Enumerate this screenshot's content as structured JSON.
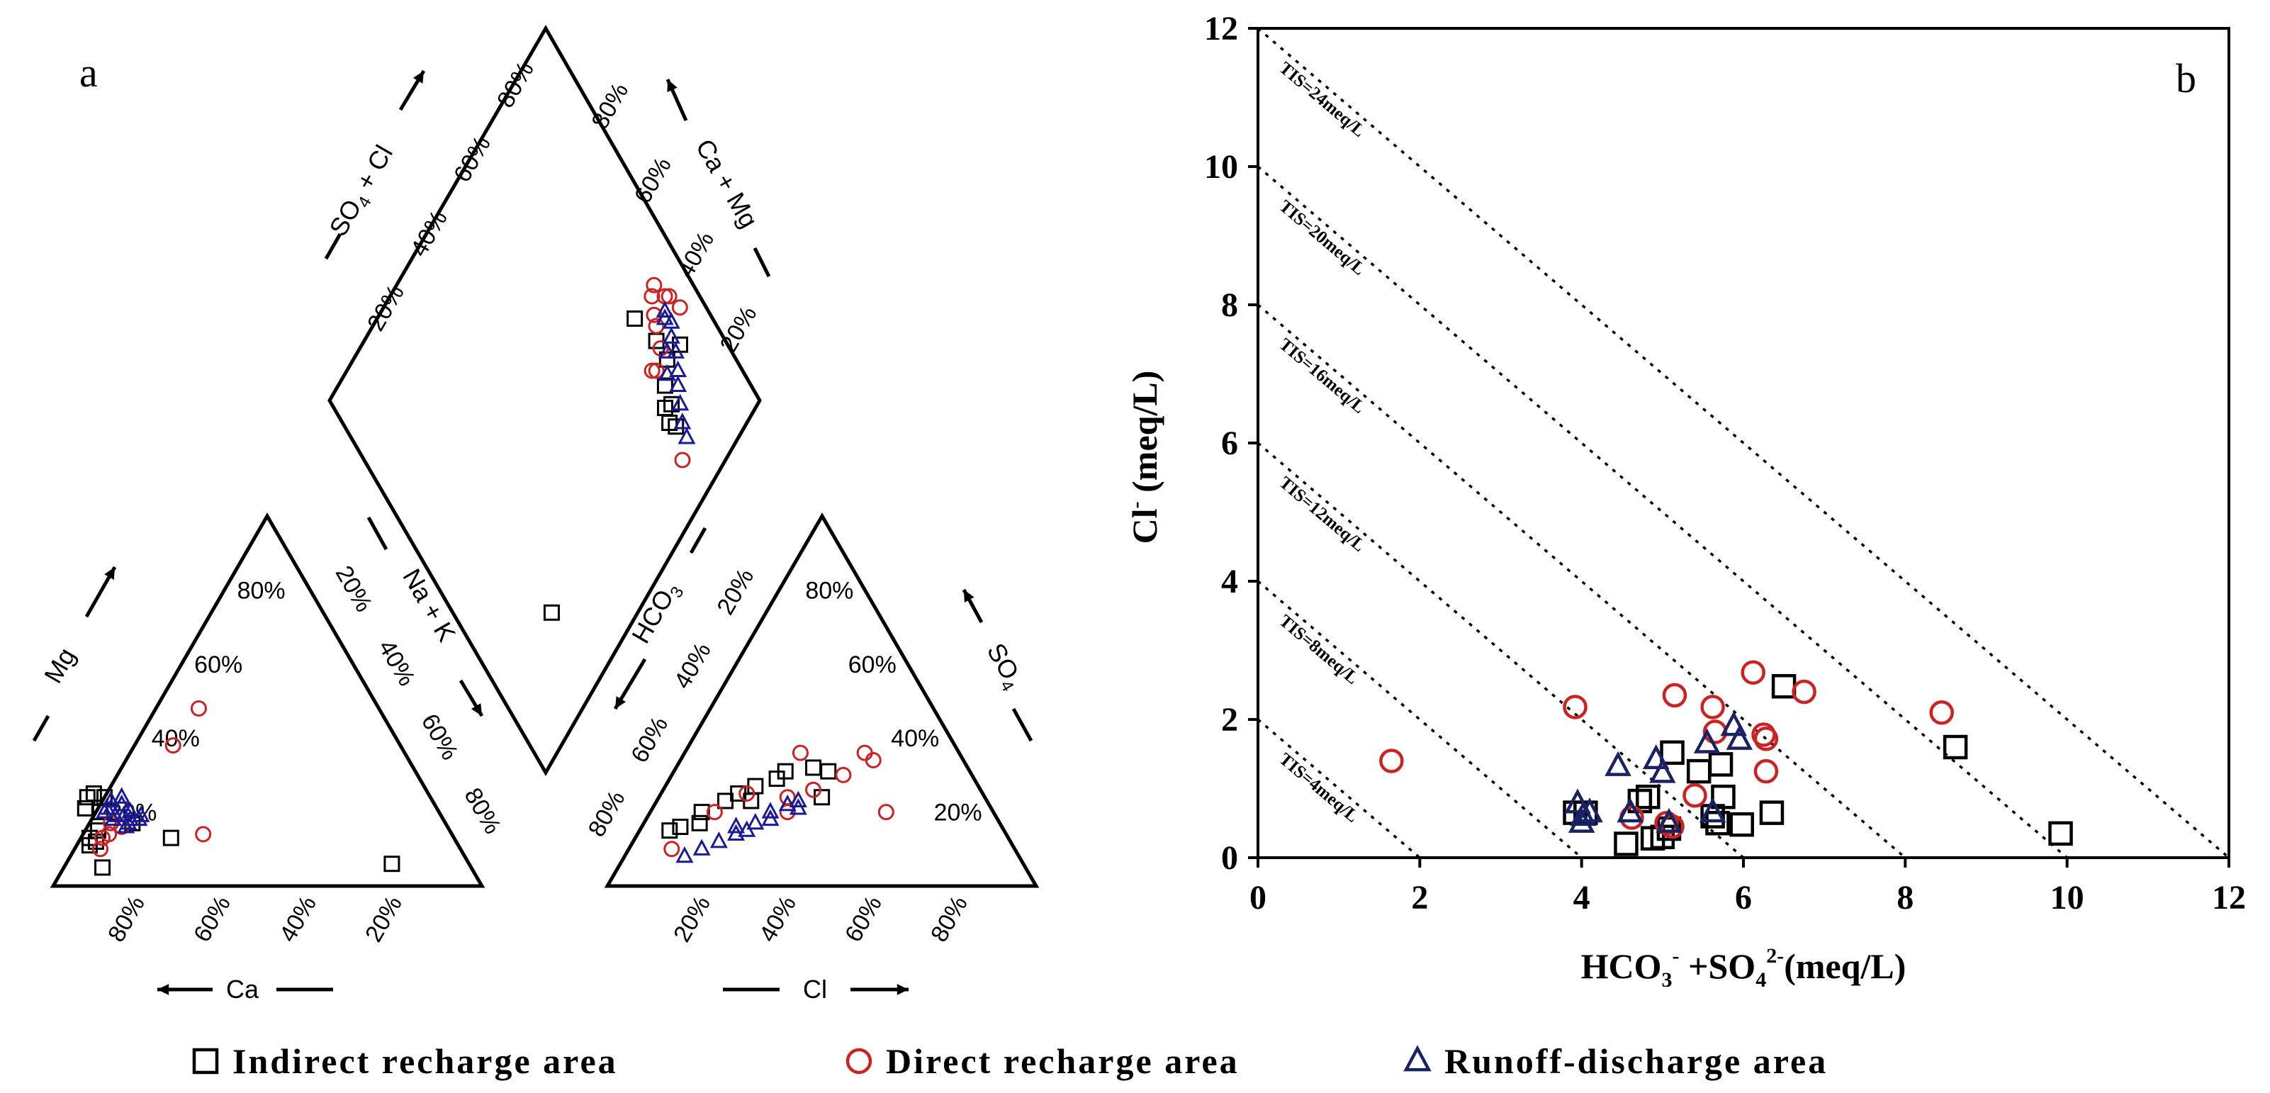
{
  "colors": {
    "indirect": "#000000",
    "direct": "#cc2222",
    "runoff": "#1a1a99",
    "runoff_b": "#1a2266"
  },
  "legend": {
    "items": [
      {
        "key": "indirect",
        "label": "Indirect recharge area",
        "marker": "square"
      },
      {
        "key": "direct",
        "label": "Direct recharge area",
        "marker": "circle"
      },
      {
        "key": "runoff",
        "label": "Runoff-discharge area",
        "marker": "triangle"
      }
    ]
  },
  "chart_data": [
    {
      "type": "scatter",
      "kind": "piper",
      "panel_label": "a",
      "axis_labels": {
        "mg": "Mg",
        "ca": "Ca",
        "na_k": "Na + K",
        "cl": "Cl",
        "so4": "SO4",
        "hco3": "HCO3",
        "so4_cl": "SO4 + Cl",
        "ca_mg": "Ca + Mg"
      },
      "tick_labels": [
        "20%",
        "40%",
        "60%",
        "80%"
      ],
      "cation_triangle": {
        "note": "(ca, mg) fractions of total cations",
        "series": [
          {
            "name": "Indirect recharge area",
            "points": [
              [
                0.86,
                0.11
              ],
              [
                0.84,
                0.12
              ],
              [
                0.8,
                0.24
              ],
              [
                0.79,
                0.2
              ],
              [
                0.86,
                0.05
              ],
              [
                0.82,
                0.21
              ],
              [
                0.78,
                0.25
              ],
              [
                0.76,
                0.24
              ],
              [
                0.73,
                0.17
              ],
              [
                0.66,
                0.13
              ],
              [
                0.18,
                0.06
              ],
              [
                0.82,
                0.15
              ],
              [
                0.85,
                0.13
              ]
            ]
          },
          {
            "name": "Direct recharge area",
            "points": [
              [
                0.84,
                0.1
              ],
              [
                0.8,
                0.14
              ],
              [
                0.78,
                0.17
              ],
              [
                0.76,
                0.16
              ],
              [
                0.58,
                0.14
              ],
              [
                0.53,
                0.38
              ],
              [
                0.42,
                0.48
              ],
              [
                0.82,
                0.13
              ]
            ]
          },
          {
            "name": "Runoff-discharge area",
            "points": [
              [
                0.78,
                0.2
              ],
              [
                0.77,
                0.18
              ],
              [
                0.76,
                0.21
              ],
              [
                0.75,
                0.23
              ],
              [
                0.74,
                0.19
              ],
              [
                0.73,
                0.22
              ],
              [
                0.72,
                0.2
              ],
              [
                0.71,
                0.18
              ],
              [
                0.74,
                0.17
              ],
              [
                0.76,
                0.19
              ],
              [
                0.77,
                0.21
              ],
              [
                0.72,
                0.24
              ],
              [
                0.73,
                0.18
              ],
              [
                0.75,
                0.16
              ],
              [
                0.7,
                0.19
              ]
            ]
          }
        ]
      },
      "anion_triangle": {
        "note": "(cl, so4) fractions of total anions",
        "series": [
          {
            "name": "Indirect recharge area",
            "points": [
              [
                0.07,
                0.15
              ],
              [
                0.09,
                0.16
              ],
              [
                0.13,
                0.17
              ],
              [
                0.16,
                0.23
              ],
              [
                0.18,
                0.25
              ],
              [
                0.21,
                0.27
              ],
              [
                0.25,
                0.29
              ],
              [
                0.26,
                0.31
              ],
              [
                0.32,
                0.32
              ],
              [
                0.36,
                0.31
              ],
              [
                0.38,
                0.24
              ],
              [
                0.12,
                0.2
              ],
              [
                0.22,
                0.23
              ]
            ]
          },
          {
            "name": "Direct recharge area",
            "points": [
              [
                0.1,
                0.1
              ],
              [
                0.15,
                0.2
              ],
              [
                0.2,
                0.25
              ],
              [
                0.27,
                0.36
              ],
              [
                0.3,
                0.24
              ],
              [
                0.35,
                0.26
              ],
              [
                0.4,
                0.3
              ],
              [
                0.42,
                0.36
              ],
              [
                0.45,
                0.34
              ],
              [
                0.55,
                0.2
              ],
              [
                0.32,
                0.2
              ]
            ]
          },
          {
            "name": "Runoff-discharge area",
            "points": [
              [
                0.14,
                0.08
              ],
              [
                0.17,
                0.1
              ],
              [
                0.2,
                0.12
              ],
              [
                0.23,
                0.14
              ],
              [
                0.26,
                0.17
              ],
              [
                0.28,
                0.2
              ],
              [
                0.31,
                0.22
              ],
              [
                0.34,
                0.21
              ],
              [
                0.29,
                0.18
              ],
              [
                0.25,
                0.15
              ],
              [
                0.22,
                0.16
              ],
              [
                0.33,
                0.23
              ]
            ]
          }
        ]
      },
      "diamond": {
        "note": "(so4_cl, ca_mg) fractions",
        "series": [
          {
            "name": "Indirect recharge area",
            "points": [
              [
                0.21,
                0.77
              ],
              [
                0.2,
                0.79
              ],
              [
                0.24,
                0.8
              ],
              [
                0.27,
                0.84
              ],
              [
                0.32,
                0.84
              ],
              [
                0.4,
                0.82
              ],
              [
                0.26,
                0.89
              ],
              [
                0.16,
                0.77
              ],
              [
                0.18,
                0.76
              ],
              [
                0.2,
                0.23
              ]
            ]
          },
          {
            "name": "Direct recharge area",
            "points": [
              [
                0.3,
                0.84
              ],
              [
                0.34,
                0.86
              ],
              [
                0.36,
                0.87
              ],
              [
                0.39,
                0.89
              ],
              [
                0.36,
                0.92
              ],
              [
                0.4,
                0.91
              ],
              [
                0.29,
                0.79
              ],
              [
                0.1,
                0.74
              ],
              [
                0.31,
                0.94
              ],
              [
                0.35,
                0.93
              ],
              [
                0.28,
                0.8
              ]
            ]
          },
          {
            "name": "Runoff-discharge area",
            "points": [
              [
                0.12,
                0.78
              ],
              [
                0.15,
                0.79
              ],
              [
                0.18,
                0.81
              ],
              [
                0.21,
                0.83
              ],
              [
                0.23,
                0.85
              ],
              [
                0.26,
                0.87
              ],
              [
                0.29,
                0.88
              ],
              [
                0.31,
                0.9
              ],
              [
                0.33,
                0.89
              ],
              [
                0.34,
                0.9
              ],
              [
                0.28,
                0.85
              ],
              [
                0.25,
                0.82
              ]
            ]
          }
        ]
      }
    },
    {
      "type": "scatter",
      "panel_label": "b",
      "xlabel": "HCO3- +SO42-(meq/L)",
      "ylabel": "Cl- (meq/L)",
      "xlim": [
        0,
        12
      ],
      "ylim": [
        0,
        12
      ],
      "xticks": [
        0,
        2,
        4,
        6,
        8,
        10,
        12
      ],
      "yticks": [
        0,
        2,
        4,
        6,
        8,
        10,
        12
      ],
      "tis_lines": [
        {
          "value": 4,
          "label": "TIS=4meq/L"
        },
        {
          "value": 8,
          "label": "TIS=8meq/L"
        },
        {
          "value": 12,
          "label": "TIS=12meq/L"
        },
        {
          "value": 16,
          "label": "TIS=16meq/L"
        },
        {
          "value": 20,
          "label": "TIS=20meq/L"
        },
        {
          "value": 24,
          "label": "TIS=24meq/L"
        }
      ],
      "series": [
        {
          "name": "Indirect recharge area",
          "points": [
            [
              3.92,
              0.65
            ],
            [
              4.05,
              0.65
            ],
            [
              4.55,
              0.2
            ],
            [
              4.72,
              0.82
            ],
            [
              4.82,
              0.88
            ],
            [
              4.88,
              0.28
            ],
            [
              5.0,
              0.3
            ],
            [
              5.08,
              0.42
            ],
            [
              5.12,
              1.52
            ],
            [
              5.45,
              1.25
            ],
            [
              5.62,
              0.6
            ],
            [
              5.68,
              0.5
            ],
            [
              5.72,
              1.35
            ],
            [
              5.75,
              0.88
            ],
            [
              5.98,
              0.48
            ],
            [
              6.35,
              0.65
            ],
            [
              6.5,
              2.48
            ],
            [
              8.62,
              1.6
            ],
            [
              9.92,
              0.35
            ]
          ]
        },
        {
          "name": "Direct recharge area",
          "points": [
            [
              1.65,
              1.4
            ],
            [
              3.92,
              2.18
            ],
            [
              4.62,
              0.58
            ],
            [
              5.05,
              0.5
            ],
            [
              5.12,
              0.45
            ],
            [
              5.15,
              2.35
            ],
            [
              5.4,
              0.9
            ],
            [
              5.62,
              2.18
            ],
            [
              5.65,
              1.82
            ],
            [
              6.12,
              2.68
            ],
            [
              6.25,
              1.78
            ],
            [
              6.28,
              1.72
            ],
            [
              6.28,
              1.25
            ],
            [
              6.75,
              2.4
            ],
            [
              8.45,
              2.1
            ]
          ]
        },
        {
          "name": "Runoff-discharge area",
          "points": [
            [
              3.95,
              0.78
            ],
            [
              4.0,
              0.5
            ],
            [
              4.02,
              0.6
            ],
            [
              4.1,
              0.65
            ],
            [
              4.45,
              1.32
            ],
            [
              4.6,
              0.65
            ],
            [
              4.92,
              1.42
            ],
            [
              5.0,
              1.22
            ],
            [
              5.08,
              0.5
            ],
            [
              5.55,
              1.65
            ],
            [
              5.62,
              0.65
            ],
            [
              5.88,
              1.9
            ],
            [
              5.95,
              1.7
            ]
          ]
        }
      ]
    }
  ]
}
